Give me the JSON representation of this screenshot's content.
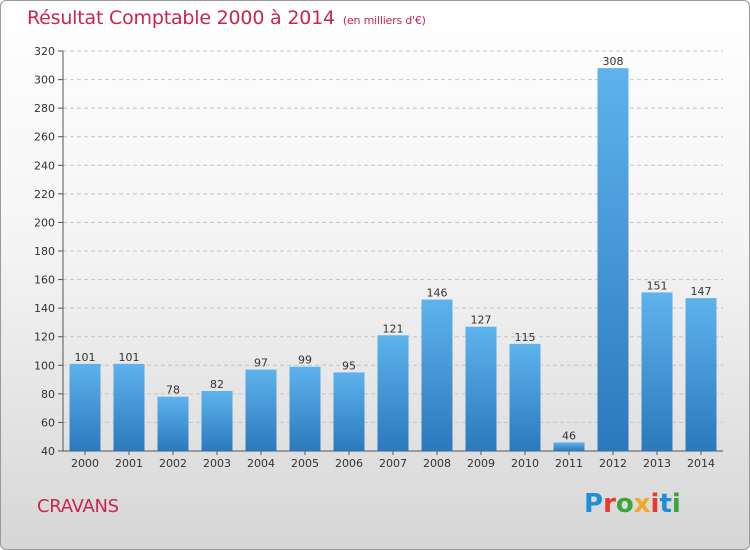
{
  "title": "Résultat Comptable 2000 à 2014",
  "unit": "(en milliers d'€)",
  "commune": "CRAVANS",
  "logo": "Proxiti",
  "colors": {
    "title": "#c8254f",
    "bar_light": "#5aaee8",
    "bar_dark": "#2b7bbf",
    "logo": [
      "#1e8fd6",
      "#e8392c",
      "#3aa63a",
      "#f5a623",
      "#e8392c",
      "#1e8fd6",
      "#3aa63a"
    ]
  },
  "chart_data": {
    "type": "bar",
    "categories": [
      "2000",
      "2001",
      "2002",
      "2003",
      "2004",
      "2005",
      "2006",
      "2007",
      "2008",
      "2009",
      "2010",
      "2011",
      "2012",
      "2013",
      "2014"
    ],
    "values": [
      101,
      101,
      78,
      82,
      97,
      99,
      95,
      121,
      146,
      127,
      115,
      46,
      308,
      151,
      147
    ],
    "ylim": [
      40,
      320
    ],
    "yticks": [
      40,
      60,
      80,
      100,
      120,
      140,
      160,
      180,
      200,
      220,
      240,
      260,
      280,
      300,
      320
    ],
    "grid": "horizontal dashed",
    "data_labels": true
  }
}
